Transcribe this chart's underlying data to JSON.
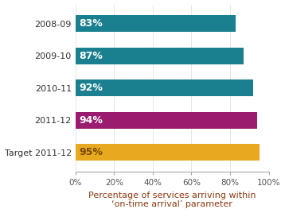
{
  "categories": [
    "2008-09",
    "2009-10",
    "2010-11",
    "2011-12",
    "Target 2011-12"
  ],
  "values": [
    83,
    87,
    92,
    94,
    95
  ],
  "bar_colors": [
    "#1a7f8e",
    "#1a7f8e",
    "#1a7f8e",
    "#9b1b6e",
    "#e8a820"
  ],
  "label_colors": [
    "#ffffff",
    "#ffffff",
    "#ffffff",
    "#ffffff",
    "#7a4a00"
  ],
  "labels": [
    "83%",
    "87%",
    "92%",
    "94%",
    "95%"
  ],
  "xlabel": "Percentage of services arriving within\n‘on-time arrival’ parameter",
  "xlabel_color": "#8b3a10",
  "xlim": [
    0,
    100
  ],
  "xticks": [
    0,
    20,
    40,
    60,
    80,
    100
  ],
  "xtick_labels": [
    "0%",
    "20%",
    "40%",
    "60%",
    "80%",
    "100%"
  ],
  "bar_height": 0.52,
  "label_fontsize": 9.0,
  "tick_fontsize": 7.5,
  "xlabel_fontsize": 8.0,
  "ytick_fontsize": 8.0,
  "background_color": "#ffffff"
}
